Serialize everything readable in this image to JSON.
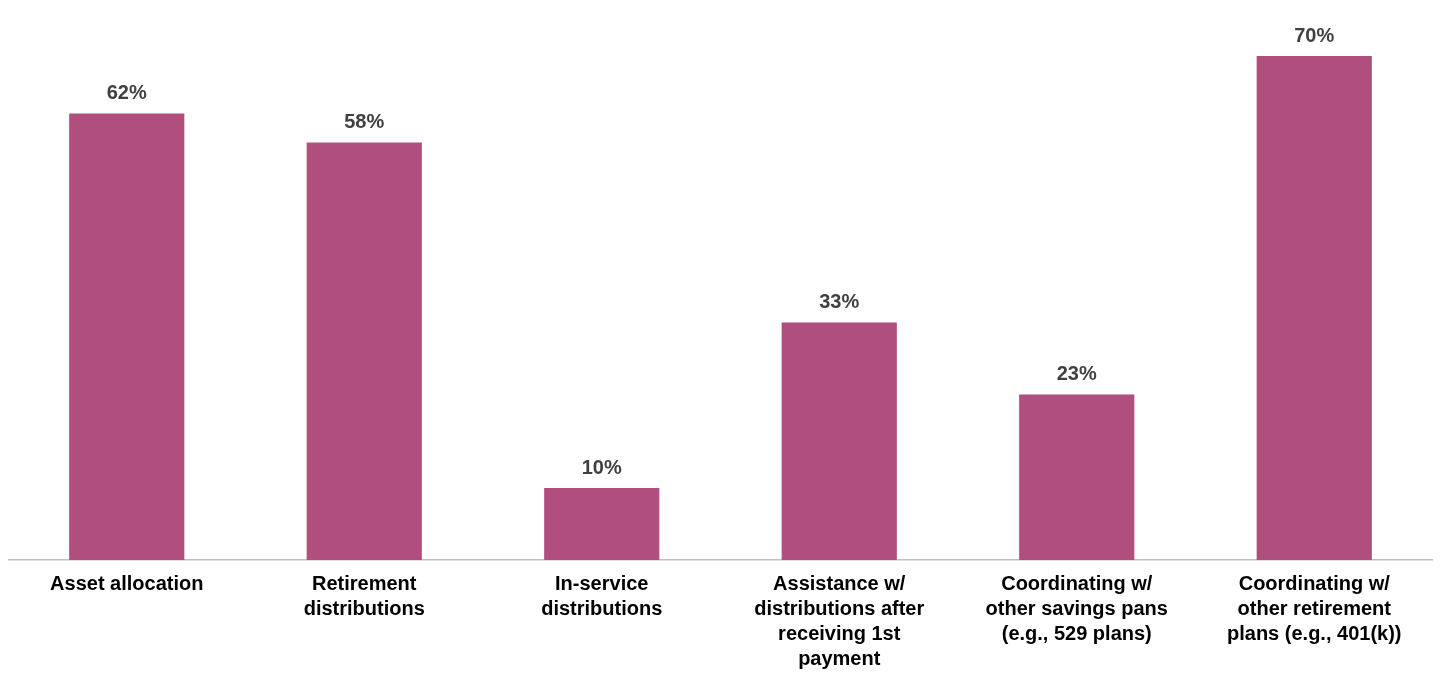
{
  "chart_data": {
    "type": "bar",
    "categories": [
      "Asset allocation",
      "Retirement distributions",
      "In-service distributions",
      "Assistance w/ distributions after receiving 1st payment",
      "Coordinating w/ other savings pans (e.g., 529 plans)",
      "Coordinating w/ other retirement plans (e.g., 401(k))"
    ],
    "values": [
      62,
      58,
      10,
      33,
      23,
      70
    ],
    "color": "#b04e7e",
    "value_labels": [
      "62%",
      "58%",
      "10%",
      "33%",
      "23%",
      "70%"
    ],
    "tick_labels": "x",
    "grid": false,
    "legend": false
  }
}
